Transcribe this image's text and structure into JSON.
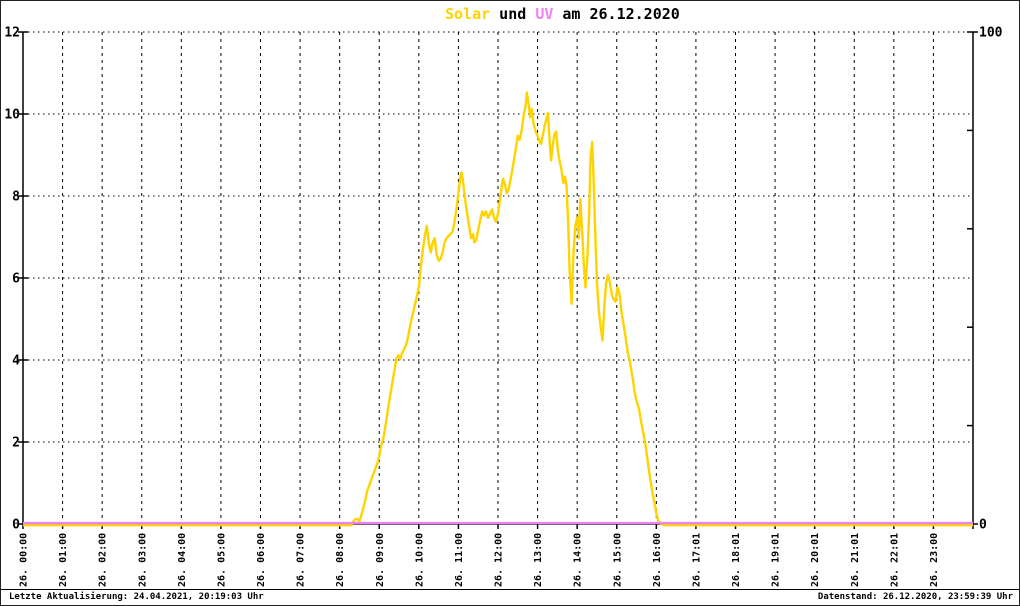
{
  "title": {
    "solar_label": "Solar",
    "und_label": " und ",
    "uv_label": "UV",
    "date_label": " am 26.12.2020"
  },
  "colors": {
    "solar": "#FFD300",
    "uv": "#EE82EE",
    "axis": "#000000",
    "background": "#FFFFFF"
  },
  "axes": {
    "left_ticks": [
      "0",
      "2",
      "4",
      "6",
      "8",
      "10",
      "12"
    ],
    "right_ticks": [
      "0",
      "100"
    ],
    "right_minor_ticks": [
      20,
      40,
      60,
      80
    ],
    "x_labels": [
      "26. 00:00",
      "26. 01:00",
      "26. 02:00",
      "26. 03:00",
      "26. 04:00",
      "26. 05:00",
      "26. 06:00",
      "26. 07:00",
      "26. 08:00",
      "26. 09:00",
      "26. 10:00",
      "26. 11:00",
      "26. 12:00",
      "26. 13:00",
      "26. 14:00",
      "26. 15:00",
      "26. 16:00",
      "26. 17:01",
      "26. 18:01",
      "26. 19:01",
      "26. 20:01",
      "26. 21:01",
      "26. 22:01",
      "26. 23:00"
    ]
  },
  "footer": {
    "left": "Letzte Aktualisierung: 24.04.2021, 20:19:03 Uhr",
    "right": "Datenstand: 26.12.2020, 23:59:39 Uhr"
  },
  "chart_data": {
    "type": "line",
    "title": "Solar und UV am 26.12.2020",
    "x_unit": "hours",
    "xlim": [
      0,
      24
    ],
    "ylim_left": [
      0,
      12
    ],
    "ylim_right": [
      0,
      100
    ],
    "grid": true,
    "legend_position": "none",
    "series": [
      {
        "name": "Solar",
        "color": "#FFD300",
        "axis": "left",
        "points": [
          [
            0,
            0
          ],
          [
            8.3,
            0
          ],
          [
            8.35,
            0.1
          ],
          [
            8.4,
            0.15
          ],
          [
            8.45,
            0.15
          ],
          [
            8.5,
            0.1
          ],
          [
            8.55,
            0.25
          ],
          [
            8.62,
            0.5
          ],
          [
            8.7,
            0.85
          ],
          [
            8.78,
            1.05
          ],
          [
            8.87,
            1.3
          ],
          [
            8.95,
            1.5
          ],
          [
            9.0,
            1.7
          ],
          [
            9.05,
            1.95
          ],
          [
            9.1,
            2.1
          ],
          [
            9.17,
            2.5
          ],
          [
            9.23,
            2.9
          ],
          [
            9.3,
            3.3
          ],
          [
            9.37,
            3.7
          ],
          [
            9.43,
            4.05
          ],
          [
            9.48,
            4.15
          ],
          [
            9.53,
            4.05
          ],
          [
            9.58,
            4.2
          ],
          [
            9.63,
            4.3
          ],
          [
            9.68,
            4.4
          ],
          [
            9.73,
            4.6
          ],
          [
            9.8,
            4.95
          ],
          [
            9.87,
            5.25
          ],
          [
            9.93,
            5.5
          ],
          [
            10.0,
            5.8
          ],
          [
            10.05,
            6.3
          ],
          [
            10.1,
            6.7
          ],
          [
            10.15,
            7.05
          ],
          [
            10.2,
            7.3
          ],
          [
            10.25,
            6.9
          ],
          [
            10.3,
            6.65
          ],
          [
            10.35,
            6.9
          ],
          [
            10.4,
            7.0
          ],
          [
            10.45,
            6.6
          ],
          [
            10.5,
            6.45
          ],
          [
            10.55,
            6.5
          ],
          [
            10.6,
            6.65
          ],
          [
            10.65,
            6.9
          ],
          [
            10.7,
            7.0
          ],
          [
            10.75,
            7.05
          ],
          [
            10.8,
            7.1
          ],
          [
            10.85,
            7.15
          ],
          [
            10.9,
            7.4
          ],
          [
            10.95,
            7.7
          ],
          [
            11.0,
            8.1
          ],
          [
            11.05,
            8.5
          ],
          [
            11.08,
            8.6
          ],
          [
            11.12,
            8.35
          ],
          [
            11.17,
            7.95
          ],
          [
            11.22,
            7.6
          ],
          [
            11.27,
            7.3
          ],
          [
            11.32,
            7.0
          ],
          [
            11.37,
            7.1
          ],
          [
            11.4,
            6.9
          ],
          [
            11.45,
            6.95
          ],
          [
            11.5,
            7.2
          ],
          [
            11.55,
            7.45
          ],
          [
            11.6,
            7.65
          ],
          [
            11.65,
            7.55
          ],
          [
            11.7,
            7.65
          ],
          [
            11.75,
            7.5
          ],
          [
            11.8,
            7.6
          ],
          [
            11.85,
            7.7
          ],
          [
            11.9,
            7.5
          ],
          [
            11.95,
            7.4
          ],
          [
            12.0,
            7.6
          ],
          [
            12.05,
            7.95
          ],
          [
            12.1,
            8.3
          ],
          [
            12.13,
            8.45
          ],
          [
            12.18,
            8.3
          ],
          [
            12.22,
            8.1
          ],
          [
            12.27,
            8.2
          ],
          [
            12.32,
            8.45
          ],
          [
            12.37,
            8.7
          ],
          [
            12.42,
            9.0
          ],
          [
            12.47,
            9.3
          ],
          [
            12.5,
            9.5
          ],
          [
            12.55,
            9.4
          ],
          [
            12.6,
            9.65
          ],
          [
            12.65,
            10.0
          ],
          [
            12.7,
            10.25
          ],
          [
            12.73,
            10.55
          ],
          [
            12.77,
            10.3
          ],
          [
            12.81,
            9.95
          ],
          [
            12.85,
            10.15
          ],
          [
            12.9,
            9.8
          ],
          [
            12.95,
            9.6
          ],
          [
            13.0,
            9.5
          ],
          [
            13.05,
            9.35
          ],
          [
            13.09,
            9.3
          ],
          [
            13.14,
            9.55
          ],
          [
            13.18,
            9.75
          ],
          [
            13.22,
            9.9
          ],
          [
            13.26,
            10.05
          ],
          [
            13.3,
            9.4
          ],
          [
            13.34,
            8.9
          ],
          [
            13.39,
            9.3
          ],
          [
            13.43,
            9.55
          ],
          [
            13.47,
            9.6
          ],
          [
            13.51,
            9.15
          ],
          [
            13.56,
            8.85
          ],
          [
            13.6,
            8.7
          ],
          [
            13.65,
            8.35
          ],
          [
            13.69,
            8.5
          ],
          [
            13.73,
            8.3
          ],
          [
            13.77,
            7.4
          ],
          [
            13.81,
            6.2
          ],
          [
            13.86,
            5.4
          ],
          [
            13.9,
            6.5
          ],
          [
            13.95,
            7.3
          ],
          [
            14.0,
            7.5
          ],
          [
            14.04,
            7.0
          ],
          [
            14.08,
            7.95
          ],
          [
            14.13,
            7.1
          ],
          [
            14.17,
            6.3
          ],
          [
            14.21,
            5.8
          ],
          [
            14.26,
            6.6
          ],
          [
            14.3,
            7.5
          ],
          [
            14.34,
            9.0
          ],
          [
            14.38,
            9.35
          ],
          [
            14.42,
            8.3
          ],
          [
            14.46,
            7.0
          ],
          [
            14.5,
            5.9
          ],
          [
            14.55,
            5.2
          ],
          [
            14.6,
            4.8
          ],
          [
            14.64,
            4.5
          ],
          [
            14.69,
            5.4
          ],
          [
            14.73,
            5.9
          ],
          [
            14.78,
            6.1
          ],
          [
            14.83,
            5.9
          ],
          [
            14.88,
            5.6
          ],
          [
            14.93,
            5.5
          ],
          [
            14.97,
            5.45
          ],
          [
            15.02,
            5.8
          ],
          [
            15.07,
            5.65
          ],
          [
            15.12,
            5.2
          ],
          [
            15.17,
            4.9
          ],
          [
            15.22,
            4.6
          ],
          [
            15.28,
            4.2
          ],
          [
            15.33,
            4.0
          ],
          [
            15.4,
            3.6
          ],
          [
            15.46,
            3.2
          ],
          [
            15.51,
            3.0
          ],
          [
            15.56,
            2.85
          ],
          [
            15.62,
            2.5
          ],
          [
            15.68,
            2.2
          ],
          [
            15.73,
            1.95
          ],
          [
            15.79,
            1.5
          ],
          [
            15.85,
            1.1
          ],
          [
            15.9,
            0.8
          ],
          [
            15.96,
            0.5
          ],
          [
            16.0,
            0.3
          ],
          [
            16.05,
            0.1
          ],
          [
            16.1,
            0.05
          ],
          [
            16.2,
            0
          ],
          [
            24,
            0
          ]
        ]
      },
      {
        "name": "UV",
        "color": "#EE82EE",
        "axis": "right",
        "points": [
          [
            0,
            0
          ],
          [
            24,
            0
          ]
        ]
      }
    ]
  }
}
